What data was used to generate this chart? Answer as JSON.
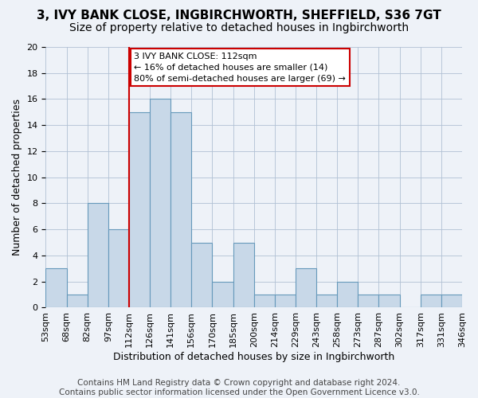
{
  "title": "3, IVY BANK CLOSE, INGBIRCHWORTH, SHEFFIELD, S36 7GT",
  "subtitle": "Size of property relative to detached houses in Ingbirchworth",
  "xlabel": "Distribution of detached houses by size in Ingbirchworth",
  "ylabel": "Number of detached properties",
  "bin_labels": [
    "53sqm",
    "68sqm",
    "82sqm",
    "97sqm",
    "112sqm",
    "126sqm",
    "141sqm",
    "156sqm",
    "170sqm",
    "185sqm",
    "200sqm",
    "214sqm",
    "229sqm",
    "243sqm",
    "258sqm",
    "273sqm",
    "287sqm",
    "302sqm",
    "317sqm",
    "331sqm",
    "346sqm"
  ],
  "bar_heights": [
    3,
    1,
    8,
    6,
    15,
    16,
    15,
    5,
    2,
    5,
    1,
    1,
    3,
    1,
    2,
    1,
    1,
    0,
    1,
    1
  ],
  "bar_color": "#c8d8e8",
  "bar_edge_color": "#6699bb",
  "vline_x_index": 4,
  "vline_color": "#cc0000",
  "ylim": [
    0,
    20
  ],
  "yticks": [
    0,
    2,
    4,
    6,
    8,
    10,
    12,
    14,
    16,
    18,
    20
  ],
  "annotation_line1": "3 IVY BANK CLOSE: 112sqm",
  "annotation_line2": "← 16% of detached houses are smaller (14)",
  "annotation_line3": "80% of semi-detached houses are larger (69) →",
  "annotation_box_color": "#ffffff",
  "annotation_box_edge": "#cc0000",
  "footer_text": "Contains HM Land Registry data © Crown copyright and database right 2024.\nContains public sector information licensed under the Open Government Licence v3.0.",
  "background_color": "#eef2f8",
  "grid_color": "#b0c0d4",
  "title_fontsize": 11,
  "subtitle_fontsize": 10,
  "axis_label_fontsize": 9,
  "tick_fontsize": 8,
  "footer_fontsize": 7.5,
  "annotation_fontsize": 8
}
